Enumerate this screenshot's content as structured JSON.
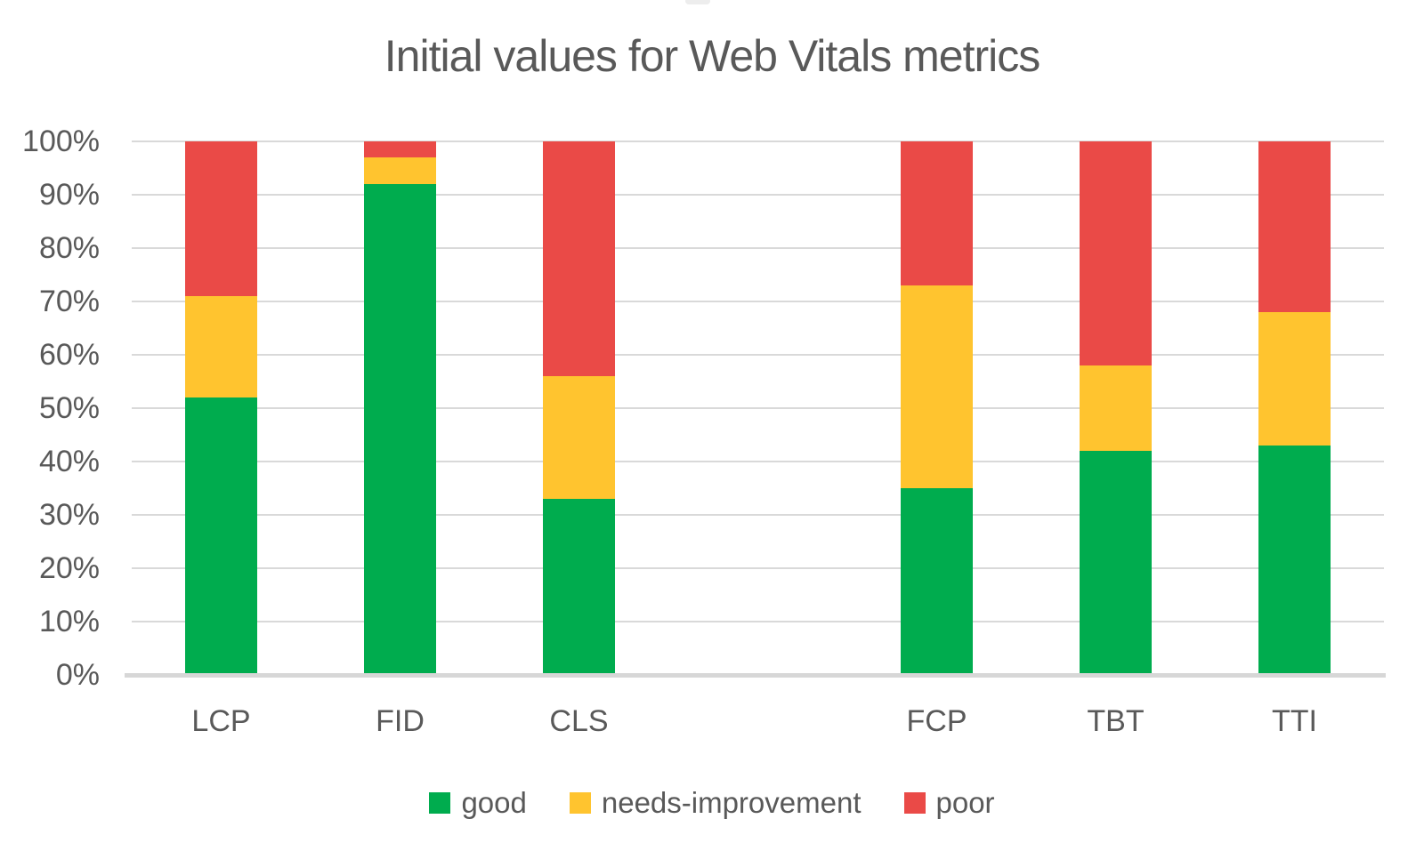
{
  "chart_data": {
    "type": "bar",
    "variant": "stacked-100-percent",
    "title": "Initial values for Web Vitals metrics",
    "categories": [
      "LCP",
      "FID",
      "CLS",
      "FCP",
      "TBT",
      "TTI"
    ],
    "gap_after_category": "CLS",
    "series": [
      {
        "name": "good",
        "color": "#00AC4E",
        "values": [
          52,
          92,
          33,
          35,
          42,
          43
        ]
      },
      {
        "name": "needs-improvement",
        "color": "#FFC42F",
        "values": [
          19,
          5,
          23,
          38,
          16,
          25
        ]
      },
      {
        "name": "poor",
        "color": "#EA4A47",
        "values": [
          29,
          3,
          44,
          27,
          42,
          32
        ]
      }
    ],
    "xlabel": "",
    "ylabel": "",
    "y_axis": {
      "min": 0,
      "max": 100,
      "tick_step": 10,
      "tick_labels": [
        "0%",
        "10%",
        "20%",
        "30%",
        "40%",
        "50%",
        "60%",
        "70%",
        "80%",
        "90%",
        "100%"
      ],
      "grid": true
    },
    "legend_position": "bottom",
    "colors": {
      "grid": "#D9D9D9",
      "axis_line": "#D7D7D7",
      "text": "#595959",
      "background": "#FFFFFF"
    }
  }
}
